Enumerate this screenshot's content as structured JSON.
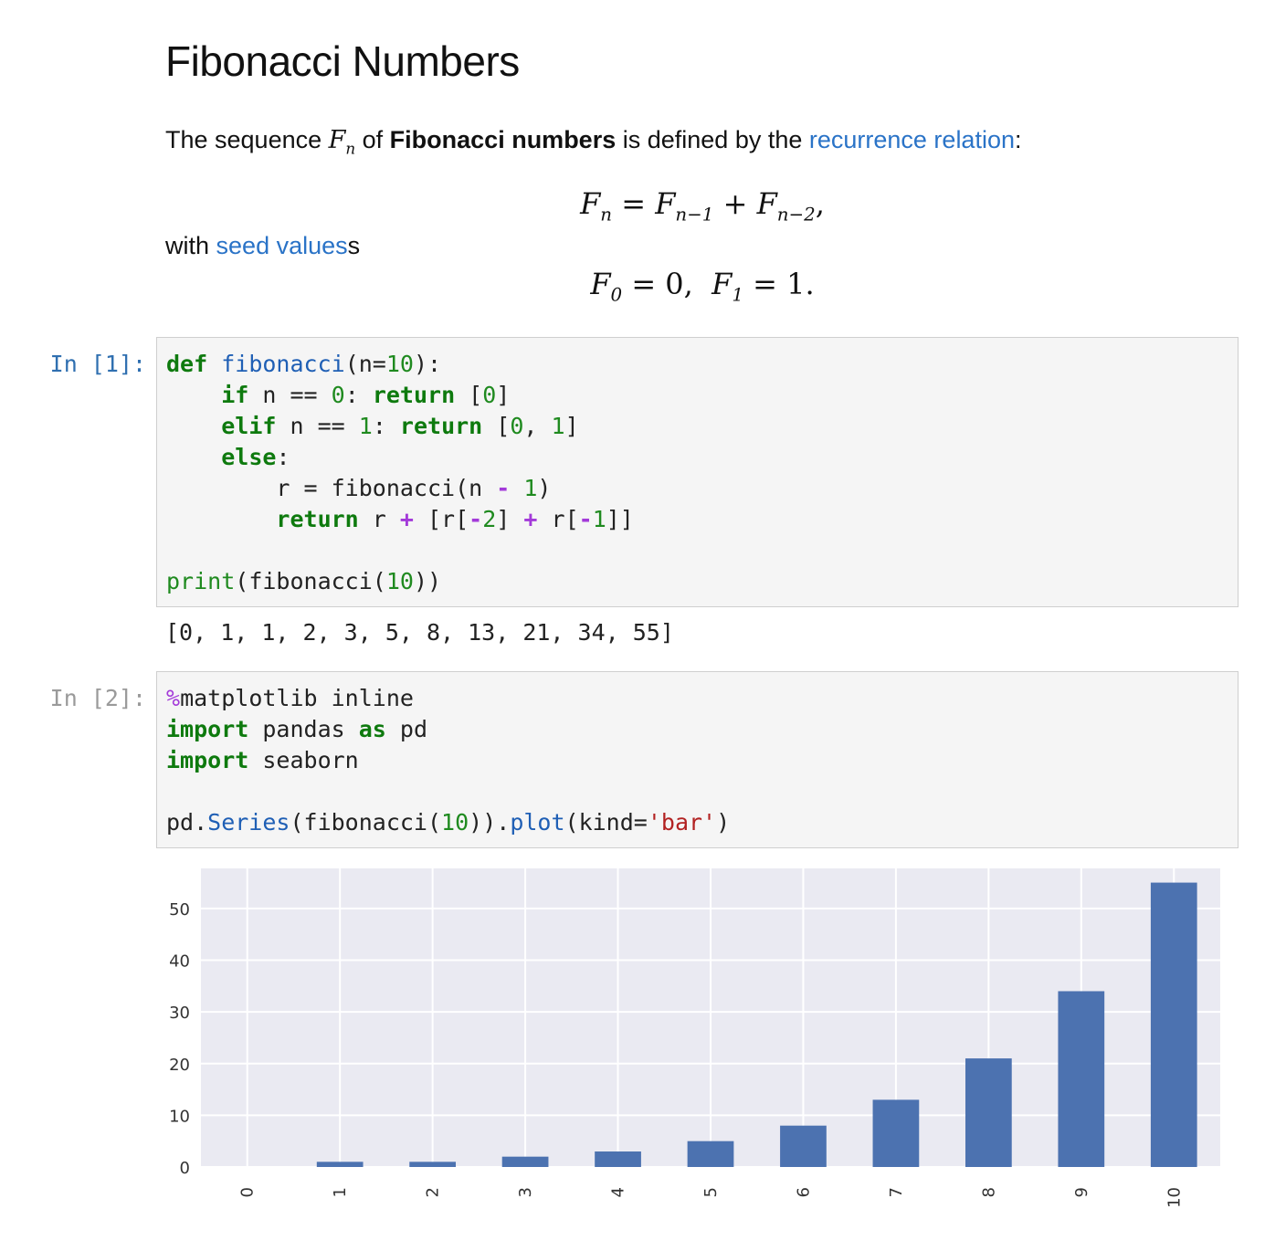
{
  "markdown": {
    "title": "Fibonacci Numbers",
    "intro": {
      "pre": "The sequence ",
      "var": "F",
      "var_sub": "n",
      "mid": " of ",
      "bold": "Fibonacci numbers",
      "post": " is defined by the ",
      "link": "recurrence relation",
      "end": ":"
    },
    "equation1": "Fn = Fn−1 + Fn−2,",
    "seed": {
      "pre": "with ",
      "link": "seed values",
      "post": "s"
    },
    "equation2": "F0 = 0, F1 = 1."
  },
  "cells": [
    {
      "prompt": "In [1]:",
      "code_lines": [
        "def fibonacci(n=10):",
        "    if n == 0: return [0]",
        "    elif n == 1: return [0, 1]",
        "    else:",
        "        r = fibonacci(n - 1)",
        "        return r + [r[-2] + r[-1]]",
        "",
        "print(fibonacci(10))"
      ],
      "output": "[0, 1, 1, 2, 3, 5, 8, 13, 21, 34, 55]"
    },
    {
      "prompt": "In [2]:",
      "code_lines": [
        "%matplotlib inline",
        "import pandas as pd",
        "import seaborn",
        "",
        "pd.Series(fibonacci(10)).plot(kind='bar')"
      ]
    }
  ],
  "chart_data": {
    "type": "bar",
    "categories": [
      "0",
      "1",
      "2",
      "3",
      "4",
      "5",
      "6",
      "7",
      "8",
      "9",
      "10"
    ],
    "values": [
      0,
      1,
      1,
      2,
      3,
      5,
      8,
      13,
      21,
      34,
      55
    ],
    "yticks": [
      0,
      10,
      20,
      30,
      40,
      50
    ],
    "ylim": [
      0,
      57.75
    ],
    "bar_color": "#4c72b0",
    "background": "#eaeaf2",
    "grid": true,
    "title": "",
    "xlabel": "",
    "ylabel": ""
  },
  "colors": {
    "link": "#2a73c7",
    "prompt_active": "#2f6fb0",
    "prompt_idle": "#9a9a9a",
    "keyword": "#0e7a0e",
    "operator": "#a33ad9"
  }
}
